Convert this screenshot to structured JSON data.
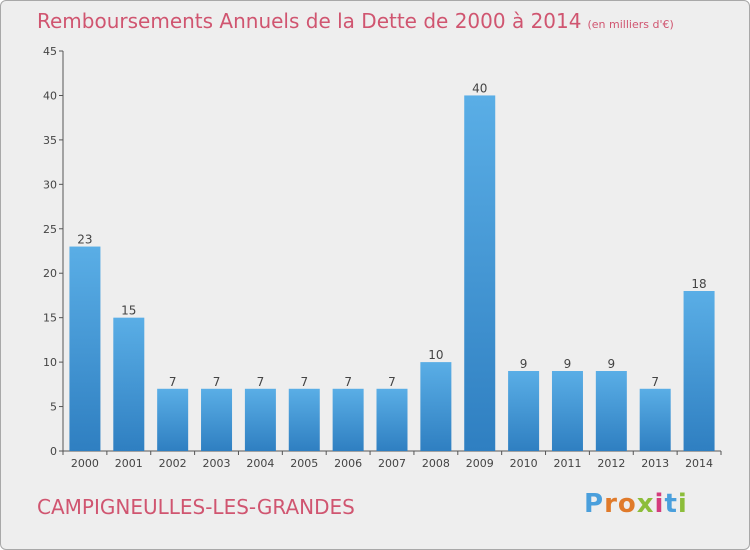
{
  "title": "Remboursements Annuels de la Dette de 2000 à 2014",
  "unit": "(en milliers d'€)",
  "commune": "CAMPIGNEULLES-LES-GRANDES",
  "logo": {
    "letters": [
      "P",
      "r",
      "o",
      "x",
      "i",
      "t",
      "i"
    ],
    "colors": [
      "#4a9fdc",
      "#e07a2a",
      "#e07a2a",
      "#8cbd3a",
      "#d43c7c",
      "#4a9fdc",
      "#8cbd3a"
    ]
  },
  "colors": {
    "title": "#d05570",
    "bar": "#4da1dc",
    "bar_dark": "#2f7fc1",
    "background": "#eeeeee"
  },
  "chart_data": {
    "type": "bar",
    "categories": [
      "2000",
      "2001",
      "2002",
      "2003",
      "2004",
      "2005",
      "2006",
      "2007",
      "2008",
      "2009",
      "2010",
      "2011",
      "2012",
      "2013",
      "2014"
    ],
    "values": [
      23,
      15,
      7,
      7,
      7,
      7,
      7,
      7,
      10,
      40,
      9,
      9,
      9,
      7,
      18
    ],
    "ylim": [
      0,
      45
    ],
    "yticks": [
      0,
      5,
      10,
      15,
      20,
      25,
      30,
      35,
      40,
      45
    ],
    "grid": false,
    "data_labels": true
  }
}
